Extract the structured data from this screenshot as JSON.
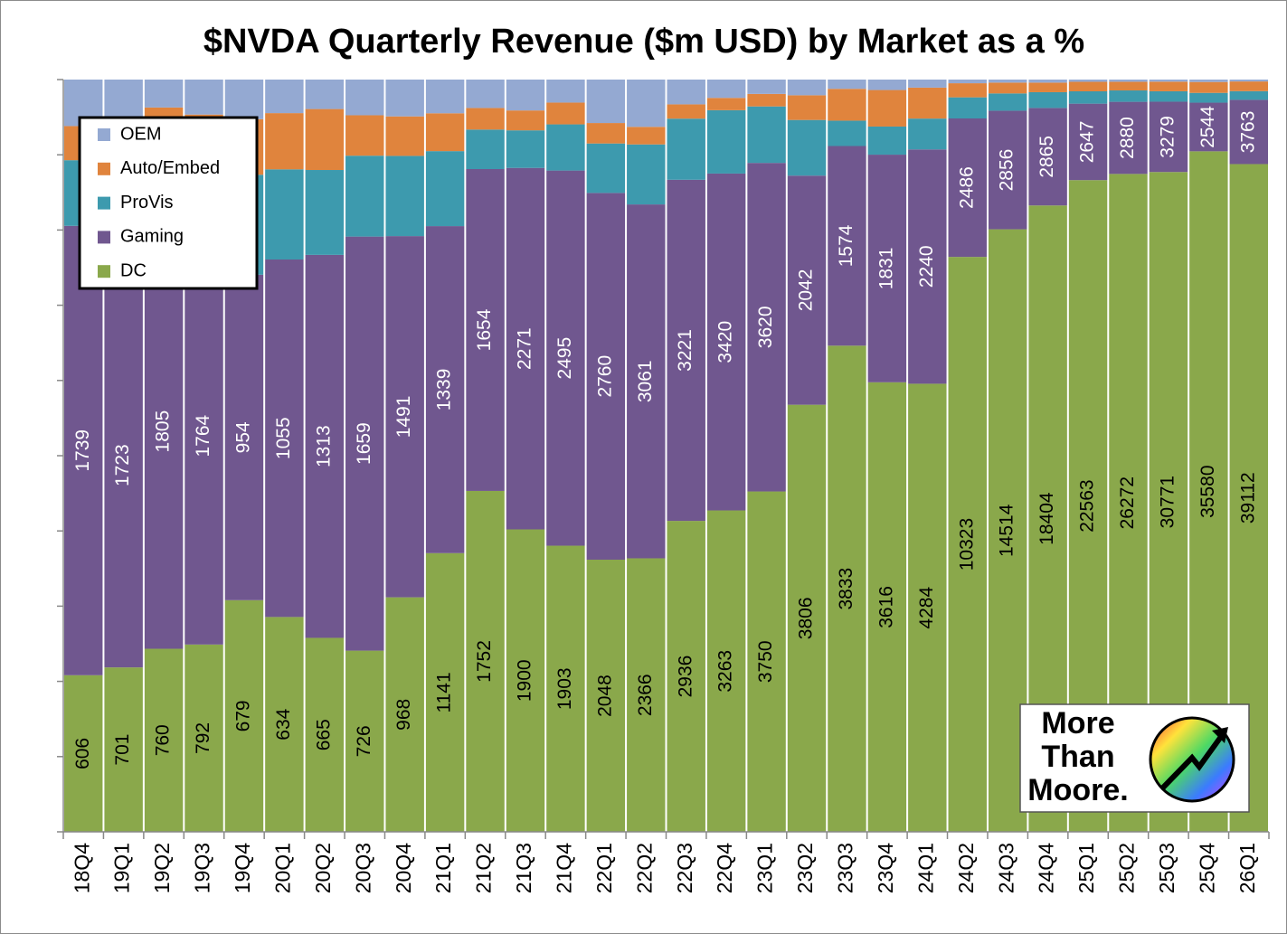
{
  "chart_data": {
    "type": "bar",
    "stacking": "percent",
    "title": "$NVDA Quarterly Revenue ($m USD) by Market as a %",
    "categories": [
      "18Q4",
      "19Q1",
      "19Q2",
      "19Q3",
      "19Q4",
      "20Q1",
      "20Q2",
      "20Q3",
      "20Q4",
      "21Q1",
      "21Q2",
      "21Q3",
      "21Q4",
      "22Q1",
      "22Q2",
      "22Q3",
      "22Q4",
      "23Q1",
      "23Q2",
      "23Q3",
      "23Q4",
      "24Q1",
      "24Q2",
      "24Q3",
      "24Q4",
      "25Q1",
      "25Q2",
      "25Q3",
      "25Q4",
      "26Q1"
    ],
    "series": [
      {
        "name": "DC",
        "color": "#8aa84b",
        "label_color": "#000000",
        "show_labels": true,
        "values": [
          606,
          701,
          760,
          792,
          679,
          634,
          665,
          726,
          968,
          1141,
          1752,
          1900,
          1903,
          2048,
          2366,
          2936,
          3263,
          3750,
          3806,
          3833,
          3616,
          4284,
          10323,
          14514,
          18404,
          22563,
          26272,
          30771,
          35580,
          39112
        ]
      },
      {
        "name": "Gaming",
        "color": "#70578f",
        "label_color": "#ffffff",
        "show_labels": true,
        "values": [
          1739,
          1723,
          1805,
          1764,
          954,
          1055,
          1313,
          1659,
          1491,
          1339,
          1654,
          2271,
          2495,
          2760,
          3061,
          3221,
          3420,
          3620,
          2042,
          1574,
          1831,
          2240,
          2486,
          2856,
          2865,
          2647,
          2880,
          3279,
          2544,
          3763
        ]
      },
      {
        "name": "ProVis",
        "color": "#3d9aae",
        "show_labels": false,
        "values": [
          254,
          251,
          281,
          305,
          293,
          266,
          291,
          324,
          331,
          307,
          203,
          236,
          307,
          372,
          519,
          577,
          643,
          622,
          496,
          200,
          226,
          295,
          379,
          416,
          463,
          427,
          454,
          486,
          511,
          509
        ]
      },
      {
        "name": "Auto/Embed",
        "color": "#e0843d",
        "show_labels": false,
        "values": [
          132,
          145,
          161,
          172,
          163,
          166,
          209,
          162,
          163,
          155,
          111,
          125,
          145,
          154,
          152,
          135,
          125,
          138,
          220,
          251,
          294,
          296,
          253,
          261,
          281,
          329,
          346,
          449,
          570,
          567
        ]
      },
      {
        "name": "OEM",
        "color": "#94a9d2",
        "show_labels": false,
        "values": [
          180,
          387,
          116,
          148,
          116,
          99,
          101,
          143,
          152,
          138,
          146,
          194,
          153,
          327,
          409,
          234,
          186,
          158,
          140,
          73,
          84,
          77,
          66,
          73,
          90,
          78,
          88,
          97,
          126,
          111
        ]
      }
    ],
    "ylim": [
      0,
      100
    ],
    "yticks": [
      0,
      10,
      20,
      30,
      40,
      50,
      60,
      70,
      80,
      90,
      100
    ],
    "grid": false,
    "legend": "top-left",
    "logo": [
      "More",
      "Than",
      "Moore."
    ]
  }
}
